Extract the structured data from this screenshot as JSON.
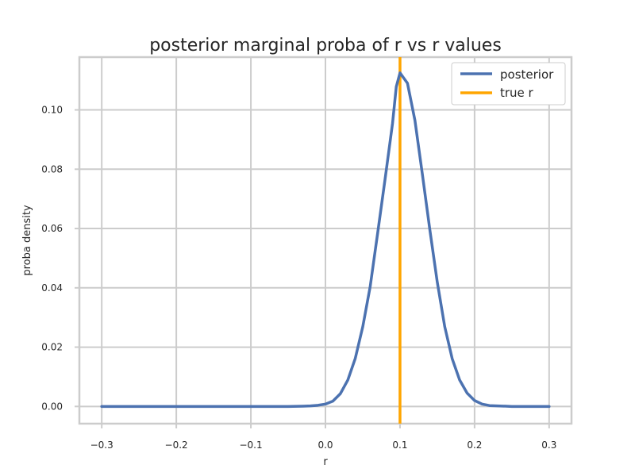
{
  "chart_data": {
    "type": "line",
    "title": "posterior marginal proba of r vs r values",
    "xlabel": "r",
    "ylabel": "proba density",
    "xlim": [
      -0.33,
      0.33
    ],
    "ylim": [
      -0.0058,
      0.1178
    ],
    "grid": true,
    "legend_position": "top-right",
    "x_ticks": [
      "−0.3",
      "−0.2",
      "−0.1",
      "0.0",
      "0.1",
      "0.2",
      "0.3"
    ],
    "x_tick_values": [
      -0.3,
      -0.2,
      -0.1,
      0.0,
      0.1,
      0.2,
      0.3
    ],
    "y_ticks": [
      "0.00",
      "0.02",
      "0.04",
      "0.06",
      "0.08",
      "0.10"
    ],
    "y_tick_values": [
      0.0,
      0.02,
      0.04,
      0.06,
      0.08,
      0.1
    ],
    "series": [
      {
        "name": "posterior",
        "color": "#4c72b0",
        "x": [
          -0.3,
          -0.2,
          -0.1,
          -0.05,
          -0.03,
          -0.02,
          -0.01,
          0.0,
          0.01,
          0.02,
          0.03,
          0.04,
          0.05,
          0.06,
          0.07,
          0.08,
          0.09,
          0.095,
          0.1,
          0.11,
          0.12,
          0.13,
          0.14,
          0.15,
          0.16,
          0.17,
          0.18,
          0.19,
          0.2,
          0.21,
          0.22,
          0.25,
          0.3
        ],
        "y": [
          0.0,
          0.0,
          0.0,
          0.0,
          0.0001,
          0.0002,
          0.0004,
          0.0008,
          0.0018,
          0.0043,
          0.0089,
          0.0162,
          0.0268,
          0.0404,
          0.0584,
          0.0767,
          0.0955,
          0.1078,
          0.1125,
          0.109,
          0.0965,
          0.0783,
          0.0596,
          0.0419,
          0.0269,
          0.0161,
          0.0089,
          0.0045,
          0.002,
          0.0008,
          0.0003,
          0.0,
          0.0
        ]
      }
    ],
    "vlines": [
      {
        "name": "true r",
        "color": "#ffa500",
        "x": 0.1
      }
    ]
  }
}
